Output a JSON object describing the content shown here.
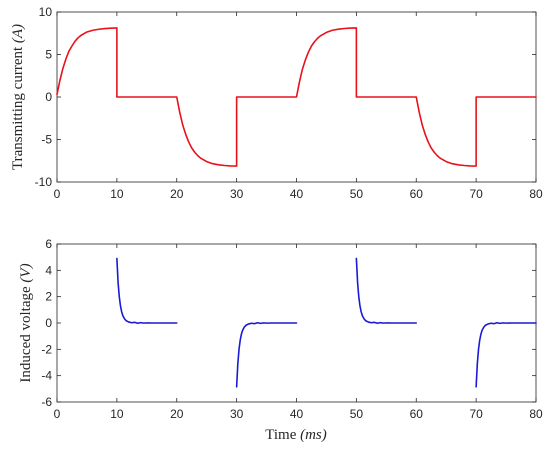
{
  "chart_data": [
    {
      "type": "line",
      "title": "",
      "xlabel": "",
      "ylabel": "Transmitting current",
      "ylabel_unit": "(A)",
      "xlim": [
        0,
        80
      ],
      "ylim": [
        -10,
        10
      ],
      "xticks": [
        "0",
        "10",
        "20",
        "30",
        "40",
        "50",
        "60",
        "70",
        "80"
      ],
      "yticks": [
        "10",
        "5",
        "0",
        "-5",
        "-10"
      ],
      "grid": false,
      "legend": "none",
      "series": [
        {
          "color": "#e8121a",
          "x": [
            0,
            0.5,
            1,
            1.5,
            2,
            2.5,
            3,
            3.5,
            4,
            5,
            6,
            7,
            8,
            9,
            10,
            10,
            20,
            20.5,
            21,
            21.5,
            22,
            22.5,
            23,
            23.5,
            24,
            25,
            26,
            27,
            28,
            29,
            30,
            30,
            40,
            40.5,
            41,
            41.5,
            42,
            42.5,
            43,
            43.5,
            44,
            45,
            46,
            47,
            48,
            49,
            50,
            50,
            60,
            60.5,
            61,
            61.5,
            62,
            62.5,
            63,
            63.5,
            64,
            65,
            66,
            67,
            68,
            69,
            70,
            70,
            80
          ],
          "y": [
            0.3,
            2.0,
            3.4,
            4.5,
            5.4,
            6.0,
            6.55,
            6.95,
            7.25,
            7.65,
            7.85,
            7.97,
            8.05,
            8.1,
            8.12,
            0,
            0,
            -1.8,
            -3.3,
            -4.4,
            -5.3,
            -6.0,
            -6.5,
            -6.9,
            -7.2,
            -7.6,
            -7.85,
            -7.98,
            -8.06,
            -8.11,
            -8.13,
            0,
            0,
            1.8,
            3.3,
            4.4,
            5.3,
            6.0,
            6.5,
            6.9,
            7.2,
            7.6,
            7.85,
            7.98,
            8.06,
            8.11,
            8.13,
            0,
            0,
            -1.8,
            -3.3,
            -4.4,
            -5.3,
            -6.0,
            -6.5,
            -6.9,
            -7.2,
            -7.6,
            -7.85,
            -7.98,
            -8.06,
            -8.11,
            -8.13,
            0,
            0
          ]
        }
      ]
    },
    {
      "type": "line",
      "title": "",
      "xlabel": "Time",
      "xlabel_unit": "(ms)",
      "ylabel": "Induced voltage",
      "ylabel_unit": "(V)",
      "xlim": [
        0,
        80
      ],
      "ylim": [
        -6,
        6
      ],
      "xticks": [
        "0",
        "10",
        "20",
        "30",
        "40",
        "50",
        "60",
        "70",
        "80"
      ],
      "yticks": [
        "6",
        "4",
        "2",
        "0",
        "-2",
        "-4",
        "-6"
      ],
      "grid": false,
      "legend": "none",
      "series": [
        {
          "color": "#1a1ad6",
          "segments": [
            {
              "x": [
                10,
                10.2,
                10.4,
                10.6,
                10.8,
                11,
                11.3,
                11.6,
                12,
                12.5,
                13,
                13.5,
                14,
                14.5,
                15,
                16,
                17,
                18,
                19,
                20
              ],
              "y": [
                4.9,
                3.1,
                2.0,
                1.3,
                0.85,
                0.55,
                0.3,
                0.16,
                0.07,
                0.02,
                0.05,
                -0.02,
                0.03,
                -0.01,
                0.01,
                0,
                0,
                0,
                0,
                0
              ]
            },
            {
              "x": [
                30,
                30.2,
                30.4,
                30.6,
                30.8,
                31,
                31.3,
                31.6,
                32,
                32.5,
                33,
                33.5,
                34,
                34.5,
                35,
                36,
                37,
                38,
                39,
                40
              ],
              "y": [
                -4.85,
                -3.1,
                -2.0,
                -1.3,
                -0.85,
                -0.55,
                -0.3,
                -0.16,
                -0.07,
                -0.02,
                -0.05,
                0.02,
                -0.03,
                0.01,
                -0.01,
                0,
                0,
                0,
                0,
                0
              ]
            },
            {
              "x": [
                50,
                50.2,
                50.4,
                50.6,
                50.8,
                51,
                51.3,
                51.6,
                52,
                52.5,
                53,
                53.5,
                54,
                54.5,
                55,
                56,
                57,
                58,
                59,
                60
              ],
              "y": [
                4.9,
                3.1,
                2.0,
                1.3,
                0.85,
                0.55,
                0.3,
                0.16,
                0.07,
                0.02,
                0.05,
                -0.02,
                0.03,
                -0.01,
                0.01,
                0,
                0,
                0,
                0,
                0
              ]
            },
            {
              "x": [
                70,
                70.2,
                70.4,
                70.6,
                70.8,
                71,
                71.3,
                71.6,
                72,
                72.5,
                73,
                73.5,
                74,
                74.5,
                75,
                76,
                77,
                78,
                79,
                80
              ],
              "y": [
                -4.85,
                -3.1,
                -2.0,
                -1.3,
                -0.85,
                -0.55,
                -0.3,
                -0.16,
                -0.07,
                -0.02,
                -0.05,
                0.02,
                -0.03,
                0.01,
                -0.01,
                0,
                0,
                0,
                0,
                0
              ]
            }
          ]
        }
      ]
    }
  ]
}
